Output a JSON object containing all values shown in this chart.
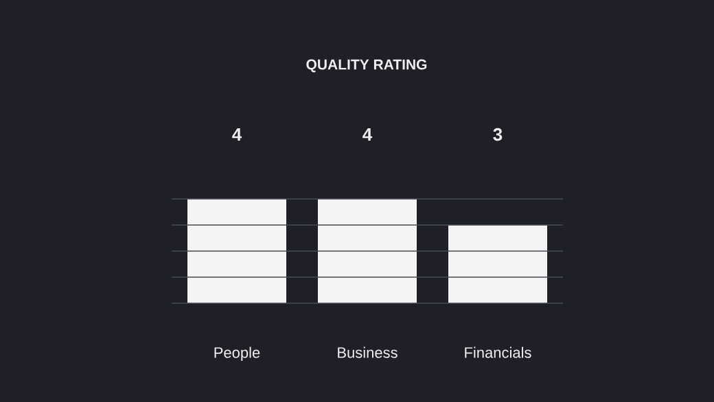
{
  "chart_data": {
    "type": "bar",
    "title": "QUALITY RATING",
    "categories": [
      "People",
      "Business",
      "Financials"
    ],
    "values": [
      4,
      4,
      3
    ],
    "color": "#f4f4f4",
    "ylim": [
      0,
      4
    ],
    "yticks": [
      {
        "value": 0,
        "label": null
      },
      {
        "value": 1,
        "label": null
      },
      {
        "value": 2,
        "label": null
      },
      {
        "value": 3,
        "label": null
      },
      {
        "value": 4,
        "label": null
      }
    ],
    "grid": "y",
    "tick_labels": "x",
    "data_labels": true
  }
}
